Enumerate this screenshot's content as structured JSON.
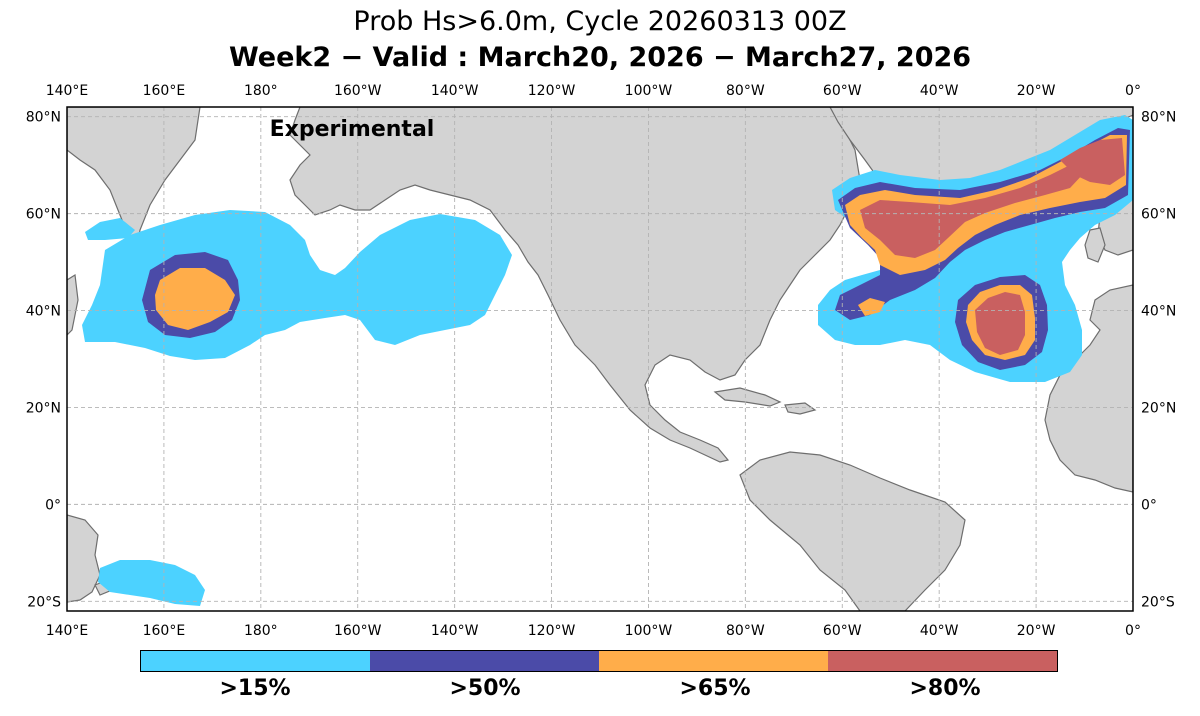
{
  "title": "Prob Hs>6.0m, Cycle 20260313 00Z",
  "subtitle": "Week2 − Valid : March20, 2026 − March27, 2026",
  "watermark": "Experimental",
  "colors": {
    "ocean": "#ffffff",
    "land": "#d3d3d3",
    "coast": "#6e6e6e",
    "gt15": "#4cd2ff",
    "gt50": "#4b4ba8",
    "gt65": "#ffad4a",
    "gt80": "#c96060"
  },
  "axes": {
    "lon_ticks": [
      "140°E",
      "160°E",
      "180°",
      "160°W",
      "140°W",
      "120°W",
      "100°W",
      "80°W",
      "60°W",
      "40°W",
      "20°W",
      "0°"
    ],
    "lat_ticks": [
      "80°N",
      "60°N",
      "40°N",
      "20°N",
      "0°",
      "20°S"
    ],
    "lon_range": [
      140,
      360
    ],
    "lat_range": [
      -22,
      82
    ],
    "grid": true
  },
  "legend": {
    "categories": [
      {
        "label": ">15%",
        "color": "#4cd2ff"
      },
      {
        "label": ">50%",
        "color": "#4b4ba8"
      },
      {
        "label": ">65%",
        "color": "#ffad4a"
      },
      {
        "label": ">80%",
        "color": "#c96060"
      }
    ]
  }
}
